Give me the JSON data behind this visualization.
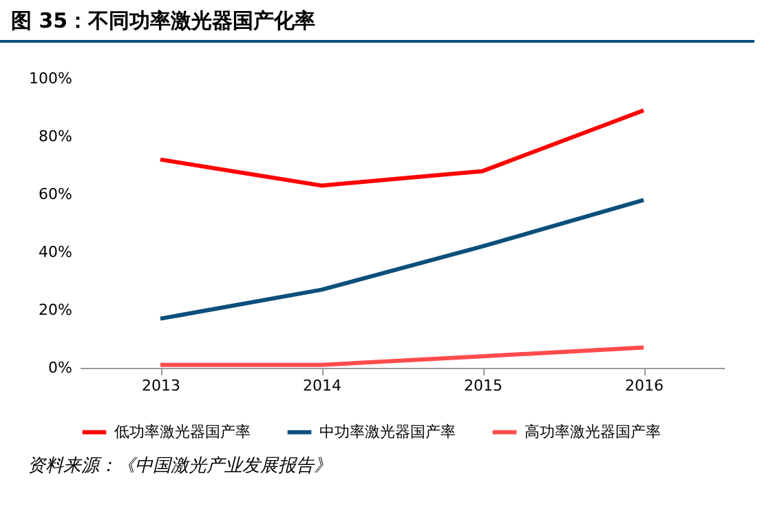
{
  "chart_data": {
    "type": "line",
    "title": "图 35：不同功率激光器国产化率",
    "categories": [
      "2013",
      "2014",
      "2015",
      "2016"
    ],
    "series": [
      {
        "name": "低功率激光器国产率",
        "color": "#ff0000",
        "values": [
          72,
          63,
          68,
          89
        ]
      },
      {
        "name": "中功率激光器国产率",
        "color": "#0b4f7c",
        "values": [
          17,
          27,
          42,
          58
        ]
      },
      {
        "name": "高功率激光器国产率",
        "color": "#ff4b4b",
        "values": [
          1,
          1,
          4,
          7
        ]
      }
    ],
    "ylim": [
      0,
      100
    ],
    "yticks": [
      {
        "value": 0,
        "label": "0%"
      },
      {
        "value": 20,
        "label": "20%"
      },
      {
        "value": 40,
        "label": "40%"
      },
      {
        "value": 60,
        "label": "60%"
      },
      {
        "value": 80,
        "label": "80%"
      },
      {
        "value": 100,
        "label": "100%"
      }
    ],
    "grid": false,
    "legend": "bottom",
    "line_style": "solid",
    "annotations": [
      "资料来源：《中国激光产业发展报告》"
    ]
  }
}
